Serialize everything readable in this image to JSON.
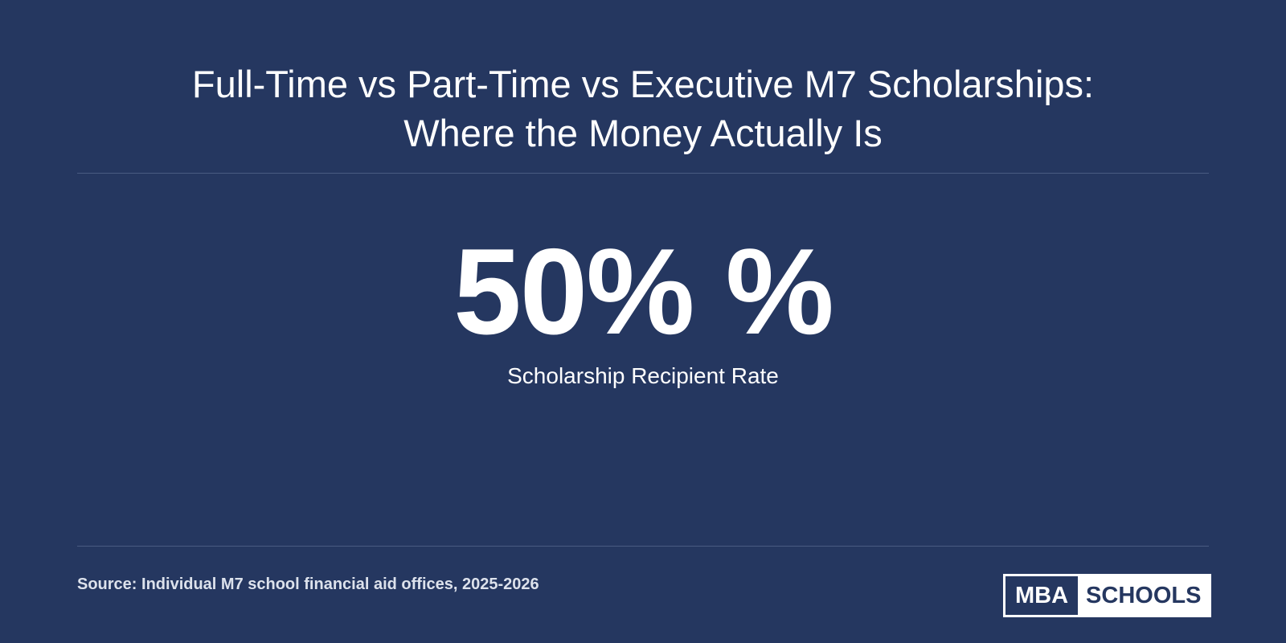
{
  "header": {
    "title_lines": [
      "Full-Time vs Part-Time vs Executive M7 Scholarships:",
      "Where the Money Actually Is"
    ]
  },
  "stat": {
    "value": "50% %",
    "label": "Scholarship Recipient Rate"
  },
  "footer": {
    "source": "Source: Individual M7 school financial aid offices, 2025-2026",
    "logo": {
      "left": "MBA",
      "right": "SCHOOLS"
    }
  }
}
